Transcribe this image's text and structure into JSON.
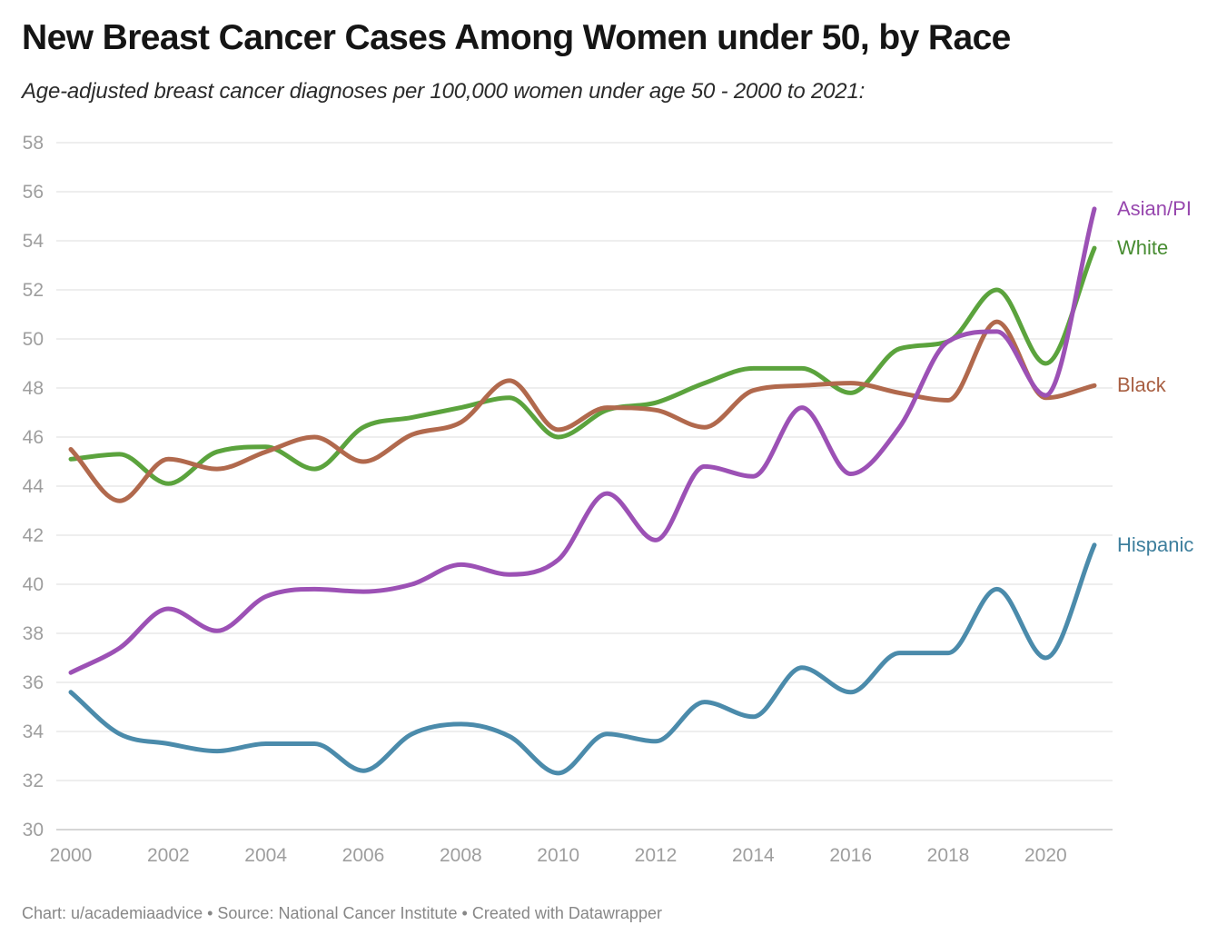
{
  "header": {
    "title": "New Breast Cancer Cases Among Women under 50, by Race",
    "subtitle": "Age-adjusted breast cancer diagnoses per 100,000 women under age 50 - 2000 to 2021:"
  },
  "footer": {
    "text": "Chart: u/academiaadvice • Source: National Cancer Institute • Created with Datawrapper"
  },
  "chart_data": {
    "type": "line",
    "title": "New Breast Cancer Cases Among Women under 50, by Race",
    "subtitle": "Age-adjusted breast cancer diagnoses per 100,000 women under age 50 - 2000 to 2021:",
    "x": [
      2000,
      2001,
      2002,
      2003,
      2004,
      2005,
      2006,
      2007,
      2008,
      2009,
      2010,
      2011,
      2012,
      2013,
      2014,
      2015,
      2016,
      2017,
      2018,
      2019,
      2020,
      2021
    ],
    "series": [
      {
        "name": "Asian/PI",
        "color": "#9c51b5",
        "label_color": "#9747ae",
        "values": [
          36.4,
          37.4,
          39.0,
          38.1,
          39.5,
          39.8,
          39.7,
          40.0,
          40.8,
          40.4,
          41.0,
          43.7,
          41.8,
          44.8,
          44.4,
          47.2,
          44.5,
          46.4,
          49.9,
          50.3,
          47.7,
          55.3
        ]
      },
      {
        "name": "White",
        "color": "#5ba33d",
        "label_color": "#478c31",
        "values": [
          45.1,
          45.3,
          44.1,
          45.4,
          45.6,
          44.7,
          46.4,
          46.8,
          47.2,
          47.6,
          46.0,
          47.1,
          47.4,
          48.2,
          48.8,
          48.8,
          47.8,
          49.6,
          49.9,
          52.0,
          49.0,
          53.7
        ]
      },
      {
        "name": "Black",
        "color": "#b1694d",
        "label_color": "#a85f42",
        "values": [
          45.5,
          43.4,
          45.1,
          44.7,
          45.4,
          46.0,
          45.0,
          46.1,
          46.6,
          48.3,
          46.3,
          47.2,
          47.1,
          46.4,
          47.9,
          48.1,
          48.2,
          47.8,
          47.5,
          50.7,
          47.6,
          48.1
        ]
      },
      {
        "name": "Hispanic",
        "color": "#4b8bab",
        "label_color": "#3e7f9d",
        "values": [
          35.6,
          33.9,
          33.5,
          33.2,
          33.5,
          33.5,
          32.4,
          33.9,
          34.3,
          33.8,
          32.3,
          33.9,
          33.6,
          35.2,
          34.6,
          36.6,
          35.6,
          37.2,
          37.2,
          39.8,
          37.0,
          41.6
        ]
      }
    ],
    "ylim": [
      30,
      58
    ],
    "yticks": [
      30,
      32,
      34,
      36,
      38,
      40,
      42,
      44,
      46,
      48,
      50,
      52,
      54,
      56,
      58
    ],
    "xticks": [
      2000,
      2002,
      2004,
      2006,
      2008,
      2010,
      2012,
      2014,
      2016,
      2018,
      2020
    ],
    "grid": "horizontal",
    "legend_position": "right-end-labels",
    "xlabel": "",
    "ylabel": ""
  },
  "colors": {
    "grid": "#e8e8e8",
    "baseline": "#c9c9c9",
    "axis_text": "#9e9e9e",
    "title_text": "#151515",
    "subtitle_text": "#2b2b2b",
    "footer_text": "#878787",
    "background": "#ffffff"
  }
}
